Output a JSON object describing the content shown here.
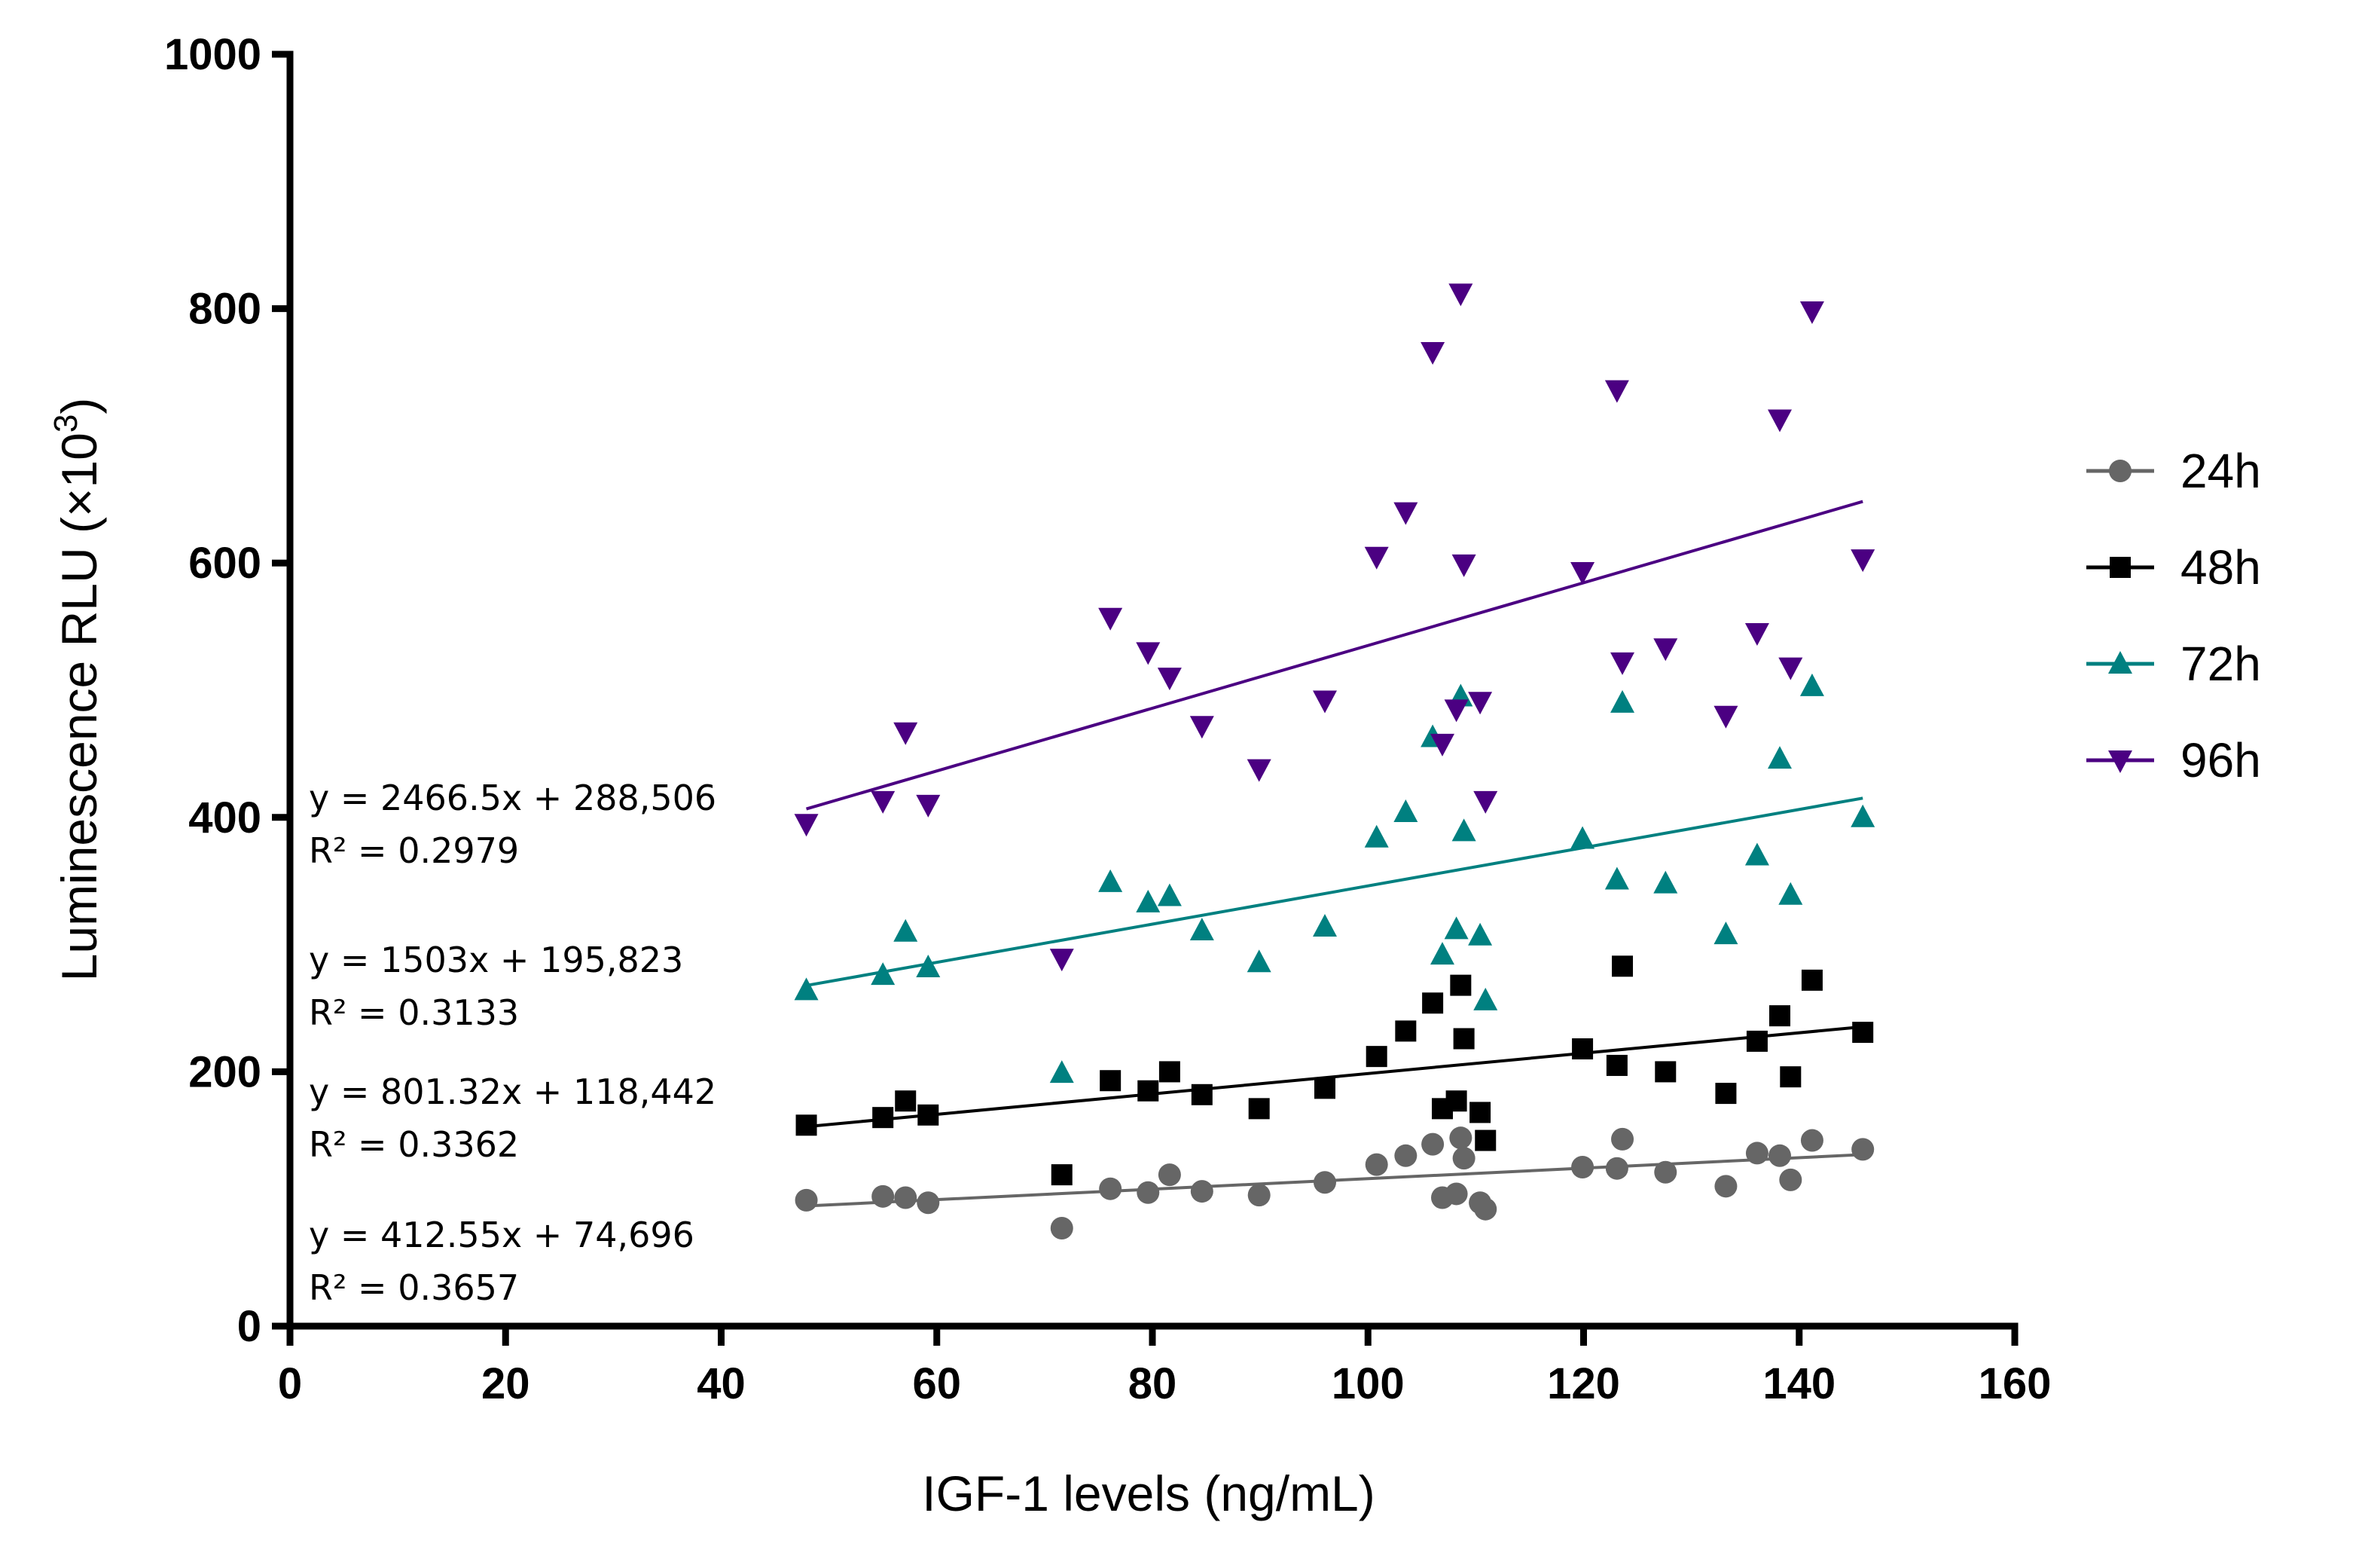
{
  "chart_data": {
    "type": "scatter",
    "title": "",
    "xlabel": "IGF-1 levels (ng/mL)",
    "ylabel_main": "Luminescence RLU (×10",
    "ylabel_sup": "3",
    "ylabel_end": ")",
    "xlim": [
      0,
      160
    ],
    "ylim": [
      0,
      1000
    ],
    "xticks": [
      0,
      20,
      40,
      60,
      80,
      100,
      120,
      140,
      160
    ],
    "yticks": [
      0,
      200,
      400,
      600,
      800,
      1000
    ],
    "grid": false,
    "legend_position": "right",
    "x": [
      47.9,
      55.0,
      57.1,
      59.2,
      71.6,
      76.1,
      79.6,
      81.6,
      84.6,
      89.9,
      96.0,
      100.8,
      103.5,
      106.0,
      106.9,
      108.2,
      108.6,
      108.9,
      110.4,
      110.9,
      119.9,
      123.1,
      123.6,
      127.6,
      133.2,
      136.1,
      138.2,
      139.2,
      141.2,
      145.9
    ],
    "series": [
      {
        "name": "24h",
        "color": "#666666",
        "marker": "circle",
        "values": [
          99,
          102,
          101,
          97,
          77,
          108,
          105,
          119,
          106,
          103,
          113,
          127,
          134,
          143,
          101,
          104,
          148,
          132,
          97,
          92,
          125,
          124,
          147,
          121,
          110,
          136,
          134,
          115,
          146,
          139
        ],
        "fit": {
          "slope_per_x": 0.41255,
          "intercept": 74.696
        },
        "equation": "y = 412.55x + 74,696",
        "r2": "R² = 0.3657"
      },
      {
        "name": "48h",
        "color": "#000000",
        "marker": "square",
        "values": [
          158,
          164,
          177,
          166,
          119,
          193,
          185,
          200,
          182,
          171,
          187,
          212,
          232,
          254,
          171,
          177,
          268,
          226,
          168,
          146,
          218,
          205,
          283,
          200,
          183,
          224,
          244,
          196,
          272,
          231
        ],
        "fit": {
          "slope_per_x": 0.80132,
          "intercept": 118.442
        },
        "equation": "y = 801.32x + 118,442",
        "r2": "R² = 0.3362"
      },
      {
        "name": "72h",
        "color": "#008080",
        "marker": "triangle-up",
        "values": [
          264,
          276,
          310,
          282,
          199,
          349,
          333,
          338,
          311,
          286,
          314,
          384,
          404,
          463,
          292,
          312,
          495,
          389,
          307,
          256,
          383,
          351,
          490,
          348,
          308,
          370,
          446,
          339,
          503,
          400
        ],
        "fit": {
          "slope_per_x": 1.503,
          "intercept": 195.823
        },
        "equation": "y = 1503x + 195,823",
        "r2": "R² = 0.3133"
      },
      {
        "name": "96h",
        "color": "#4b0082",
        "marker": "triangle-down",
        "values": [
          395,
          413,
          467,
          410,
          289,
          557,
          530,
          510,
          472,
          438,
          492,
          605,
          640,
          766,
          458,
          485,
          812,
          599,
          491,
          413,
          593,
          736,
          522,
          533,
          480,
          545,
          713,
          518,
          798,
          603
        ],
        "fit": {
          "slope_per_x": 2.4665,
          "intercept": 288.506
        },
        "equation": "y = 2466.5x + 288,506",
        "r2": "R² = 0.2979"
      }
    ],
    "annotations_order_top_to_bottom": [
      "96h",
      "72h",
      "48h",
      "24h"
    ]
  }
}
